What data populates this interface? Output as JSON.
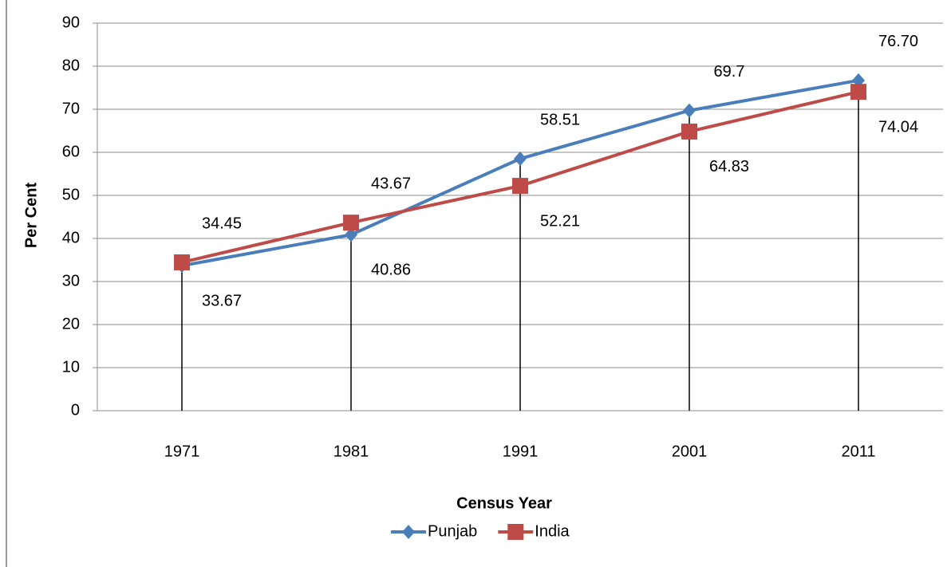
{
  "chart_data": {
    "type": "line",
    "x_label": "Census Year",
    "y_label": "Per Cent",
    "categories": [
      "1971",
      "1981",
      "1991",
      "2001",
      "2011"
    ],
    "series": [
      {
        "name": "Punjab",
        "color": "#4a7ebb",
        "marker": "diamond",
        "values": [
          33.67,
          40.86,
          58.51,
          69.7,
          76.7
        ],
        "value_labels": [
          "33.67",
          "40.86",
          "58.51",
          "69.7",
          "76.70"
        ]
      },
      {
        "name": "India",
        "color": "#be4b48",
        "marker": "square",
        "values": [
          34.45,
          43.67,
          52.21,
          64.83,
          74.04
        ]
      }
    ],
    "ylim": [
      0,
      90
    ],
    "yticks": [
      0,
      10,
      20,
      30,
      40,
      50,
      60,
      70,
      80,
      90
    ],
    "grid": true,
    "legend": "bottom"
  }
}
